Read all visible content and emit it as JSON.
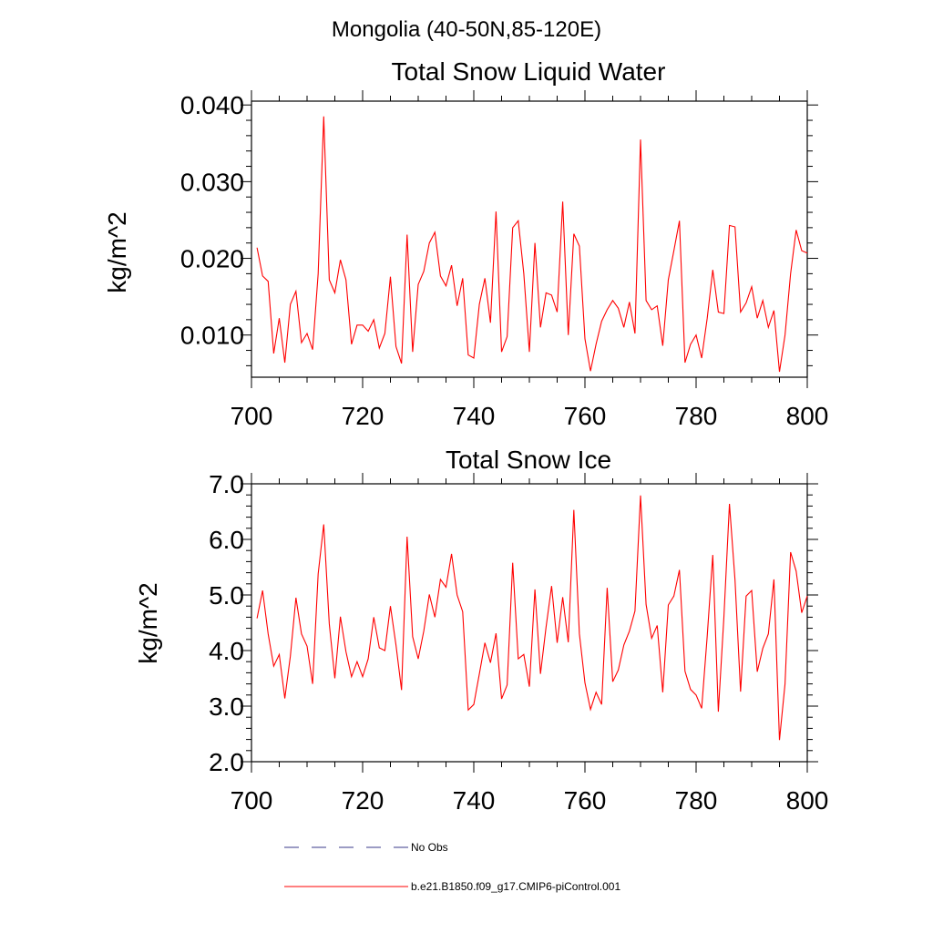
{
  "page_title": "Mongolia (40-50N,85-120E)",
  "colors": {
    "series": "#ff0000",
    "obs": "#3a3a8a",
    "axis": "#000000"
  },
  "legend": [
    {
      "label": "No Obs",
      "style": "dashed",
      "color": "#3a3a8a"
    },
    {
      "label": "b.e21.B1850.f09_g17.CMIP6-piControl.001",
      "style": "solid",
      "color": "#ff0000"
    }
  ],
  "chart_data": [
    {
      "type": "line",
      "title": "Total Snow Liquid Water",
      "xlabel": "",
      "ylabel": "kg/m^2",
      "xlim": [
        700,
        800
      ],
      "ylim": [
        0.0045,
        0.0405
      ],
      "xticks": [
        700,
        720,
        740,
        760,
        780,
        800
      ],
      "xtick_labels": [
        "700",
        "720",
        "740",
        "760",
        "780",
        "800"
      ],
      "yticks": [
        0.01,
        0.02,
        0.03,
        0.04
      ],
      "ytick_labels": [
        "0.010",
        "0.020",
        "0.030",
        "0.040"
      ],
      "x_start": 701,
      "series": [
        {
          "name": "b.e21.B1850.f09_g17.CMIP6-piControl.001",
          "values": [
            0.0214,
            0.0177,
            0.017,
            0.0076,
            0.0122,
            0.0064,
            0.014,
            0.0157,
            0.009,
            0.0102,
            0.0081,
            0.018,
            0.0385,
            0.0172,
            0.0155,
            0.0198,
            0.0172,
            0.0088,
            0.0113,
            0.0113,
            0.0105,
            0.012,
            0.0083,
            0.0102,
            0.0176,
            0.0085,
            0.0063,
            0.0231,
            0.0078,
            0.0166,
            0.0183,
            0.022,
            0.0234,
            0.0177,
            0.0164,
            0.0191,
            0.0138,
            0.0174,
            0.0074,
            0.007,
            0.014,
            0.0174,
            0.0116,
            0.0261,
            0.0078,
            0.0098,
            0.024,
            0.0249,
            0.018,
            0.0078,
            0.022,
            0.011,
            0.0155,
            0.0152,
            0.013,
            0.0274,
            0.01,
            0.0232,
            0.0216,
            0.0095,
            0.0053,
            0.0088,
            0.0118,
            0.0133,
            0.0145,
            0.0135,
            0.011,
            0.0143,
            0.0102,
            0.0355,
            0.0145,
            0.0133,
            0.0138,
            0.0086,
            0.0172,
            0.021,
            0.0249,
            0.0064,
            0.0088,
            0.01,
            0.007,
            0.0122,
            0.0185,
            0.013,
            0.0128,
            0.0243,
            0.0241,
            0.013,
            0.0142,
            0.0163,
            0.0122,
            0.0145,
            0.011,
            0.0132,
            0.0052,
            0.01,
            0.018,
            0.0237,
            0.021,
            0.0207
          ]
        }
      ]
    },
    {
      "type": "line",
      "title": "Total Snow Ice",
      "xlabel": "",
      "ylabel": "kg/m^2",
      "xlim": [
        700,
        800
      ],
      "ylim": [
        2.0,
        7.0
      ],
      "xticks": [
        700,
        720,
        740,
        760,
        780,
        800
      ],
      "xtick_labels": [
        "700",
        "720",
        "740",
        "760",
        "780",
        "800"
      ],
      "yticks": [
        2.0,
        3.0,
        4.0,
        5.0,
        6.0,
        7.0
      ],
      "ytick_labels": [
        "2.0",
        "3.0",
        "4.0",
        "5.0",
        "6.0",
        "7.0"
      ],
      "x_start": 701,
      "series": [
        {
          "name": "b.e21.B1850.f09_g17.CMIP6-piControl.001",
          "values": [
            4.58,
            5.08,
            4.3,
            3.72,
            3.93,
            3.14,
            3.9,
            4.95,
            4.3,
            4.08,
            3.4,
            5.38,
            6.27,
            4.48,
            3.5,
            4.61,
            3.98,
            3.53,
            3.8,
            3.53,
            3.85,
            4.6,
            4.05,
            4.0,
            4.8,
            4.1,
            3.29,
            6.05,
            4.25,
            3.85,
            4.35,
            5.01,
            4.6,
            5.28,
            5.14,
            5.74,
            5.0,
            4.7,
            2.93,
            3.03,
            3.58,
            4.14,
            3.78,
            4.31,
            3.13,
            3.38,
            5.58,
            3.85,
            3.93,
            3.35,
            5.1,
            3.58,
            4.42,
            5.16,
            4.14,
            4.96,
            4.15,
            6.53,
            4.3,
            3.42,
            2.94,
            3.25,
            3.03,
            5.13,
            3.44,
            3.65,
            4.1,
            4.35,
            4.71,
            6.79,
            4.83,
            4.22,
            4.45,
            3.25,
            4.82,
            4.98,
            5.45,
            3.63,
            3.3,
            3.2,
            2.96,
            4.26,
            5.72,
            2.9,
            4.6,
            6.64,
            5.27,
            3.26,
            4.98,
            5.08,
            3.62,
            4.04,
            4.3,
            5.28,
            2.39,
            3.4,
            5.77,
            5.43,
            4.68,
            4.98
          ]
        }
      ]
    }
  ]
}
